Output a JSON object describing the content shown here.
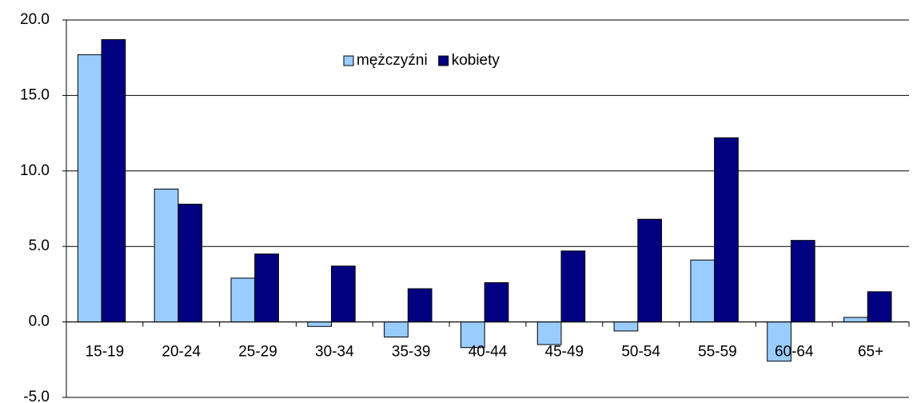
{
  "chart_data": {
    "type": "bar",
    "categories": [
      "15-19",
      "20-24",
      "25-29",
      "30-34",
      "35-39",
      "40-44",
      "45-49",
      "50-54",
      "55-59",
      "60-64",
      "65+"
    ],
    "series": [
      {
        "name": "mężczyźni",
        "color": "#99ccff",
        "values": [
          17.7,
          8.8,
          2.9,
          -0.3,
          -1.0,
          -1.7,
          -1.5,
          -0.6,
          4.1,
          -2.6,
          0.3
        ]
      },
      {
        "name": "kobiety",
        "color": "#000080",
        "values": [
          18.7,
          7.8,
          4.5,
          3.7,
          2.2,
          2.6,
          4.7,
          6.8,
          12.2,
          5.4,
          2.0
        ]
      }
    ],
    "ylim": [
      -5,
      20
    ],
    "yticks": [
      {
        "value": -5,
        "label": "-5.0"
      },
      {
        "value": 0,
        "label": "0.0"
      },
      {
        "value": 5,
        "label": "5.0"
      },
      {
        "value": 10,
        "label": "10.0"
      },
      {
        "value": 15,
        "label": "15.0"
      },
      {
        "value": 20,
        "label": "20.0"
      }
    ],
    "grid": true
  }
}
